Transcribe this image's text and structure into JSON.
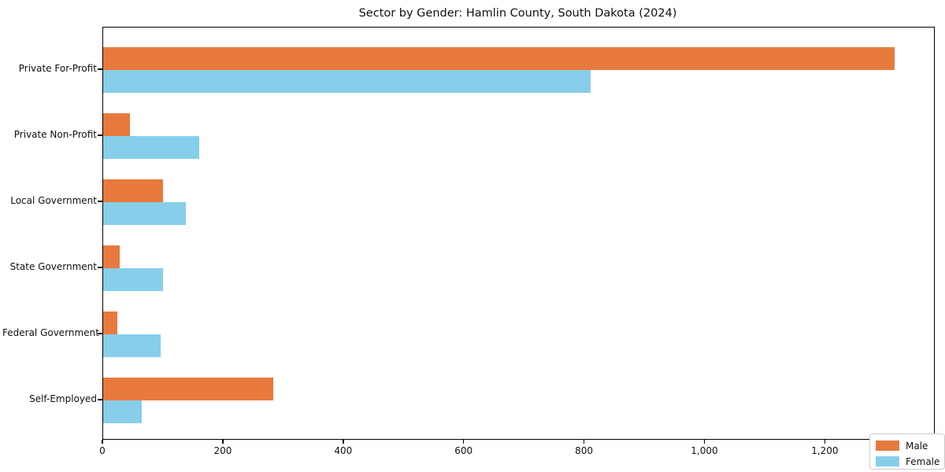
{
  "chart_data": {
    "type": "bar",
    "orientation": "horizontal",
    "title": "Sector by Gender: Hamlin County, South Dakota (2024)",
    "categories": [
      "Private For-Profit",
      "Private Non-Profit",
      "Local Government",
      "State Government",
      "Federal Government",
      "Self-Employed"
    ],
    "series": [
      {
        "name": "Male",
        "color": "#e8793d",
        "values": [
          1315,
          44,
          99,
          27,
          23,
          282
        ]
      },
      {
        "name": "Female",
        "color": "#87ceeb",
        "values": [
          810,
          160,
          137,
          99,
          95,
          64
        ]
      }
    ],
    "xlim": [
      0,
      1380
    ],
    "x_ticks": [
      0,
      200,
      400,
      600,
      800,
      1000,
      1200
    ],
    "x_tick_labels": [
      "0",
      "200",
      "400",
      "600",
      "800",
      "1,000",
      "1,200"
    ],
    "grid": false,
    "legend_position": "lower right",
    "legend": {
      "items": [
        {
          "label": "Male",
          "color": "#e8793d"
        },
        {
          "label": "Female",
          "color": "#87ceeb"
        }
      ]
    }
  }
}
